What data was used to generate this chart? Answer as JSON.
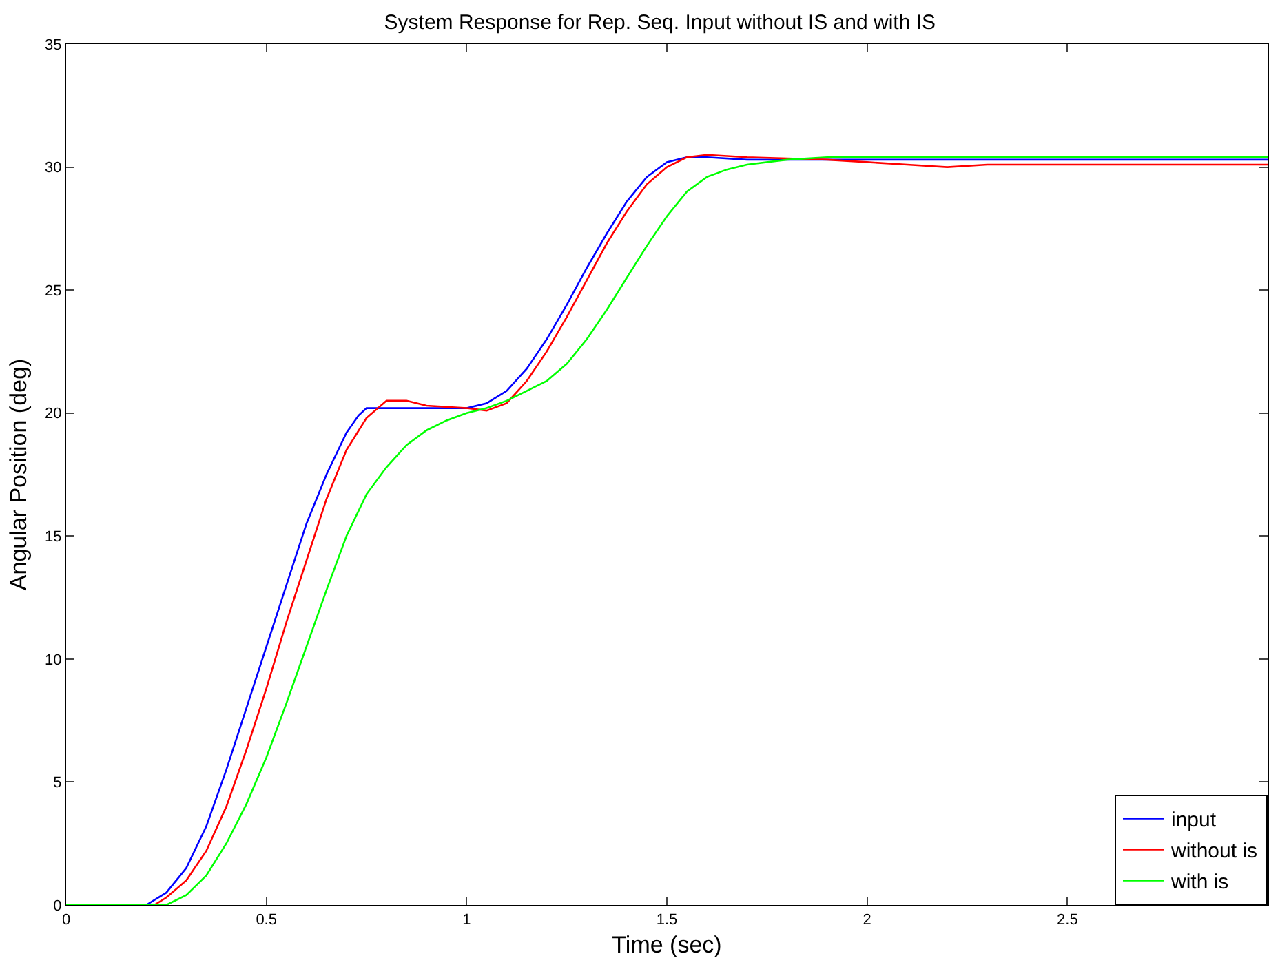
{
  "chart_data": {
    "type": "line",
    "title": "System Response for Rep. Seq. Input without IS and with IS",
    "xlabel": "Time (sec)",
    "ylabel": "Angular Position (deg)",
    "xlim": [
      0,
      3
    ],
    "ylim": [
      0,
      35
    ],
    "xticks": [
      0,
      0.5,
      1,
      1.5,
      2,
      2.5
    ],
    "yticks": [
      0,
      5,
      10,
      15,
      20,
      25,
      30,
      35
    ],
    "grid": false,
    "legend": "bottom right",
    "marker": "none",
    "line_style": "solid",
    "series": [
      {
        "name": "input",
        "color": "#0000ff",
        "x": [
          0,
          0.2,
          0.25,
          0.3,
          0.35,
          0.4,
          0.45,
          0.5,
          0.55,
          0.6,
          0.65,
          0.7,
          0.73,
          0.75,
          0.8,
          0.9,
          1.0,
          1.05,
          1.1,
          1.15,
          1.2,
          1.25,
          1.3,
          1.35,
          1.4,
          1.45,
          1.5,
          1.55,
          1.6,
          1.7,
          2.0,
          3.0
        ],
        "values": [
          0,
          0,
          0.5,
          1.5,
          3.2,
          5.5,
          8,
          10.5,
          13,
          15.5,
          17.5,
          19.2,
          19.9,
          20.2,
          20.2,
          20.2,
          20.2,
          20.4,
          20.9,
          21.8,
          23,
          24.4,
          25.9,
          27.3,
          28.6,
          29.6,
          30.2,
          30.4,
          30.4,
          30.3,
          30.3,
          30.3
        ]
      },
      {
        "name": "without is",
        "color": "#ff0000",
        "x": [
          0,
          0.22,
          0.25,
          0.3,
          0.35,
          0.4,
          0.45,
          0.5,
          0.55,
          0.6,
          0.65,
          0.7,
          0.75,
          0.8,
          0.85,
          0.9,
          1.0,
          1.05,
          1.1,
          1.15,
          1.2,
          1.25,
          1.3,
          1.35,
          1.4,
          1.45,
          1.5,
          1.55,
          1.6,
          1.7,
          1.9,
          2.0,
          2.1,
          2.2,
          2.3,
          2.5,
          3.0
        ],
        "values": [
          0,
          0,
          0.3,
          1,
          2.2,
          4,
          6.3,
          8.8,
          11.5,
          14,
          16.5,
          18.5,
          19.8,
          20.5,
          20.5,
          20.3,
          20.2,
          20.1,
          20.4,
          21.3,
          22.5,
          23.9,
          25.4,
          26.9,
          28.2,
          29.3,
          30,
          30.4,
          30.5,
          30.4,
          30.3,
          30.2,
          30.1,
          30,
          30.1,
          30.1,
          30.1
        ]
      },
      {
        "name": "with is",
        "color": "#00ff00",
        "x": [
          0,
          0.25,
          0.3,
          0.35,
          0.4,
          0.45,
          0.5,
          0.55,
          0.6,
          0.65,
          0.7,
          0.75,
          0.8,
          0.85,
          0.9,
          0.95,
          1.0,
          1.05,
          1.1,
          1.15,
          1.2,
          1.25,
          1.3,
          1.35,
          1.4,
          1.45,
          1.5,
          1.55,
          1.6,
          1.65,
          1.7,
          1.8,
          1.9,
          2.0,
          3.0
        ],
        "values": [
          0,
          0,
          0.4,
          1.2,
          2.5,
          4.1,
          6,
          8.2,
          10.5,
          12.8,
          15,
          16.7,
          17.8,
          18.7,
          19.3,
          19.7,
          20,
          20.2,
          20.5,
          20.9,
          21.3,
          22,
          23,
          24.2,
          25.5,
          26.8,
          28,
          29,
          29.6,
          29.9,
          30.1,
          30.3,
          30.4,
          30.4,
          30.4
        ]
      }
    ]
  }
}
